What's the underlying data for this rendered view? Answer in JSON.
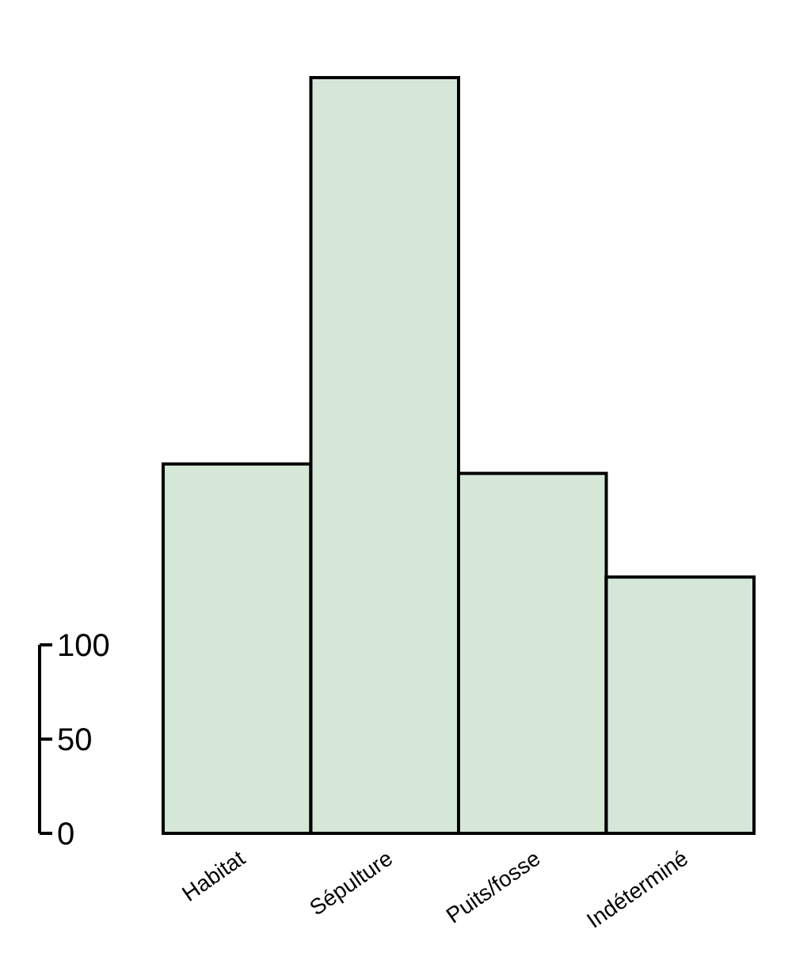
{
  "chart_data": {
    "type": "bar",
    "categories": [
      "Habitat",
      "Sépulture",
      "Puits/fosse",
      "Indéterminé"
    ],
    "values": [
      196,
      401,
      191,
      136
    ],
    "color": "#d5e8d8",
    "ylim": [
      0,
      401
    ],
    "yticks": [
      0,
      50,
      100
    ]
  }
}
